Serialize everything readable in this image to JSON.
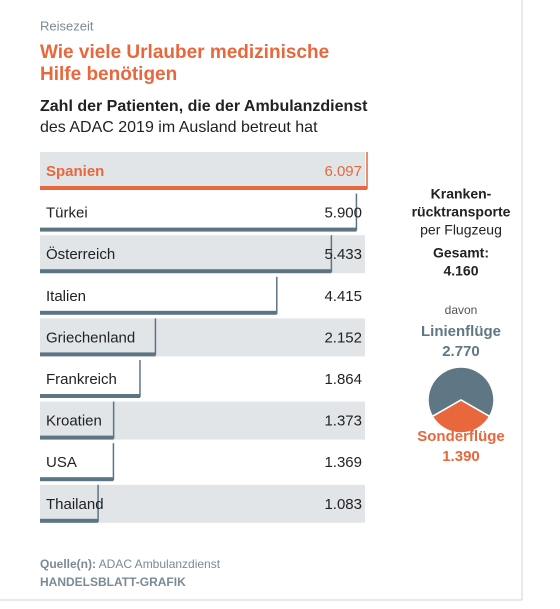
{
  "kicker": "Reisezeit",
  "title": [
    "Wie viele Urlauber medizinische",
    "Hilfe benötigen"
  ],
  "subtitle": [
    "Zahl der Patienten, die der Ambulanzdienst",
    "des ADAC 2019 im Ausland betreut hat"
  ],
  "chart_data": [
    {
      "type": "hbar",
      "categories": [
        "Spanien",
        "Türkei",
        "Österreich",
        "Italien",
        "Griechenland",
        "Frankreich",
        "Kroatien",
        "USA",
        "Thailand"
      ],
      "values": [
        6097,
        5900,
        5433,
        4415,
        2152,
        1864,
        1373,
        1369,
        1083
      ],
      "value_labels": [
        "6.097",
        "5.900",
        "5.433",
        "4.415",
        "2.152",
        "1.864",
        "1.373",
        "1.369",
        "1.083"
      ],
      "color": "#5c7585",
      "highlight_color": "#e9673c"
    },
    {
      "type": "pie",
      "title": [
        "Kranken-",
        "rücktransporte",
        "per Flugzeug"
      ],
      "total_label": "Gesamt:",
      "total": 4160,
      "total_value_label": "4.160",
      "note": "davon",
      "series": [
        {
          "name": "Linienflüge",
          "color": "#5f7785",
          "values": [
            2770
          ],
          "value_labels": [
            "2.770"
          ]
        },
        {
          "name": "Sonderflüge",
          "color": "#e9673c",
          "values": [
            1390
          ],
          "value_labels": [
            "1.390"
          ]
        }
      ]
    }
  ],
  "source": {
    "label": "Quelle(n):",
    "text": "ADAC Ambulanzdienst",
    "credit": "HANDELSBLATT-GRAFIK"
  }
}
